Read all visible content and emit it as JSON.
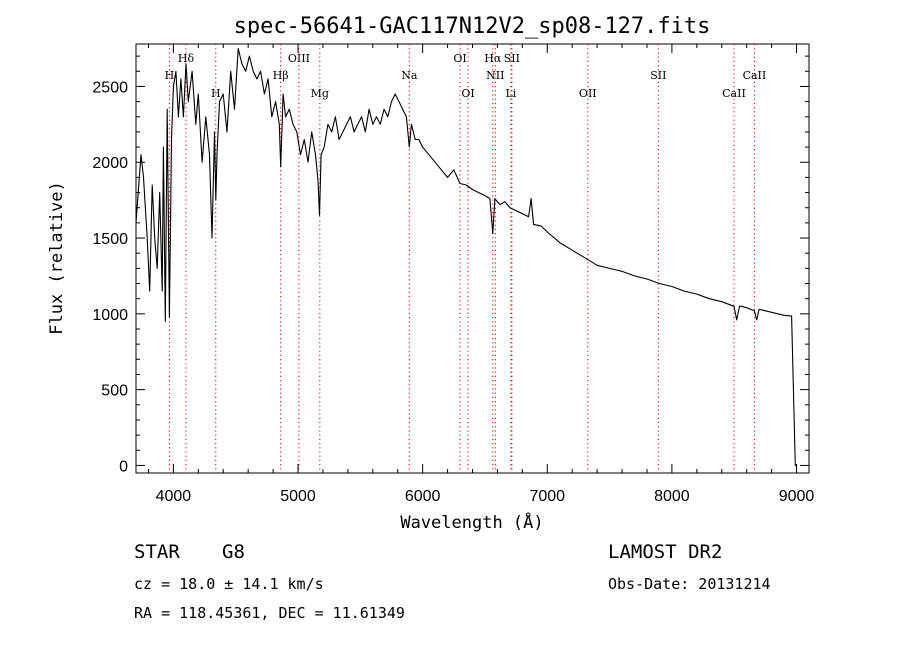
{
  "chart_data": {
    "type": "line",
    "title": "spec-56641-GAC117N12V2_sp08-127.fits",
    "xlabel": "Wavelength (Å)",
    "ylabel": "Flux (relative)",
    "xlim": [
      3700,
      9100
    ],
    "ylim": [
      -50,
      2780
    ],
    "x_ticks": [
      "4000",
      "5000",
      "6000",
      "7000",
      "8000",
      "9000"
    ],
    "x_tick_values": [
      4000,
      5000,
      6000,
      7000,
      8000,
      9000
    ],
    "y_ticks": [
      "0",
      "500",
      "1000",
      "1500",
      "2000",
      "2500"
    ],
    "y_tick_values": [
      0,
      500,
      1000,
      1500,
      2000,
      2500
    ],
    "grid": false,
    "line_color": "#000000",
    "marker_color": "#cc0000",
    "series": [
      {
        "x": [
          3700,
          3740,
          3760,
          3790,
          3810,
          3830,
          3850,
          3870,
          3890,
          3910,
          3920,
          3935,
          3950,
          3968,
          3985,
          4000,
          4020,
          4040,
          4060,
          4080,
          4101,
          4120,
          4150,
          4180,
          4200,
          4230,
          4260,
          4290,
          4310,
          4330,
          4340,
          4350,
          4370,
          4400,
          4430,
          4460,
          4490,
          4520,
          4550,
          4580,
          4610,
          4640,
          4670,
          4700,
          4730,
          4760,
          4790,
          4820,
          4850,
          4861,
          4880,
          4900,
          4930,
          4960,
          4990,
          5020,
          5050,
          5080,
          5110,
          5140,
          5160,
          5172,
          5185,
          5210,
          5240,
          5270,
          5300,
          5330,
          5360,
          5390,
          5420,
          5450,
          5480,
          5510,
          5540,
          5570,
          5600,
          5630,
          5660,
          5690,
          5720,
          5750,
          5780,
          5810,
          5840,
          5870,
          5893,
          5910,
          5940,
          5970,
          6000,
          6050,
          6100,
          6150,
          6200,
          6250,
          6300,
          6350,
          6400,
          6450,
          6500,
          6540,
          6563,
          6580,
          6620,
          6660,
          6700,
          6750,
          6800,
          6850,
          6870,
          6890,
          6950,
          7000,
          7100,
          7200,
          7300,
          7400,
          7500,
          7600,
          7700,
          7800,
          7900,
          8000,
          8100,
          8200,
          8300,
          8400,
          8498,
          8520,
          8542,
          8560,
          8600,
          8662,
          8680,
          8700,
          8750,
          8800,
          8850,
          8900,
          8960,
          8990,
          9000
        ],
        "values": [
          1600,
          2050,
          1900,
          1500,
          1150,
          1850,
          1500,
          1300,
          1800,
          1150,
          2100,
          950,
          2350,
          980,
          2150,
          2500,
          2600,
          2300,
          2550,
          2300,
          2650,
          2400,
          2600,
          2250,
          2450,
          2000,
          2300,
          2050,
          1500,
          2200,
          1750,
          2050,
          2400,
          2450,
          2200,
          2600,
          2350,
          2750,
          2650,
          2600,
          2700,
          2600,
          2550,
          2600,
          2450,
          2550,
          2300,
          2400,
          2250,
          1970,
          2450,
          2300,
          2350,
          2250,
          2200,
          2050,
          2150,
          2000,
          2200,
          2050,
          1880,
          1650,
          2050,
          2100,
          2250,
          2200,
          2300,
          2150,
          2200,
          2250,
          2300,
          2200,
          2250,
          2300,
          2200,
          2350,
          2250,
          2300,
          2250,
          2350,
          2300,
          2400,
          2450,
          2400,
          2350,
          2300,
          2100,
          2250,
          2150,
          2150,
          2100,
          2050,
          2000,
          1950,
          1900,
          1950,
          1860,
          1850,
          1820,
          1800,
          1780,
          1760,
          1530,
          1760,
          1720,
          1740,
          1700,
          1680,
          1660,
          1640,
          1760,
          1590,
          1580,
          1540,
          1470,
          1420,
          1370,
          1320,
          1300,
          1280,
          1250,
          1230,
          1200,
          1180,
          1150,
          1130,
          1100,
          1080,
          1050,
          960,
          1050,
          1050,
          1040,
          1020,
          960,
          1030,
          1020,
          1010,
          1000,
          990,
          985,
          0,
          0
        ]
      }
    ],
    "line_markers": [
      {
        "label": "Hδ",
        "x": 4101,
        "row": 0
      },
      {
        "label": "H",
        "x": 3968,
        "row": 1
      },
      {
        "label": "H",
        "x": 4340,
        "row": 2
      },
      {
        "label": "Hβ",
        "x": 4861,
        "row": 1
      },
      {
        "label": "OIII",
        "x": 5007,
        "row": 0
      },
      {
        "label": "Mg",
        "x": 5175,
        "row": 2
      },
      {
        "label": "Na",
        "x": 5893,
        "row": 1
      },
      {
        "label": "OI",
        "x": 6300,
        "row": 0
      },
      {
        "label": "OI",
        "x": 6364,
        "row": 2
      },
      {
        "label": "Hα",
        "x": 6563,
        "row": 0
      },
      {
        "label": "NII",
        "x": 6583,
        "row": 1
      },
      {
        "label": "SII",
        "x": 6716,
        "row": 0
      },
      {
        "label": "Li",
        "x": 6708,
        "row": 2
      },
      {
        "label": "OII",
        "x": 7325,
        "row": 2
      },
      {
        "label": "SII",
        "x": 7891,
        "row": 1
      },
      {
        "label": "CaII",
        "x": 8498,
        "row": 2
      },
      {
        "label": "CaII",
        "x": 8662,
        "row": 1
      }
    ]
  },
  "info": {
    "star_label": "STAR",
    "class_label": "G8",
    "survey": "LAMOST DR2",
    "cz": "cz = 18.0 ± 14.1 km/s",
    "obs_date": "Obs-Date: 20131214",
    "coords": "RA = 118.45361, DEC =  11.61349"
  }
}
